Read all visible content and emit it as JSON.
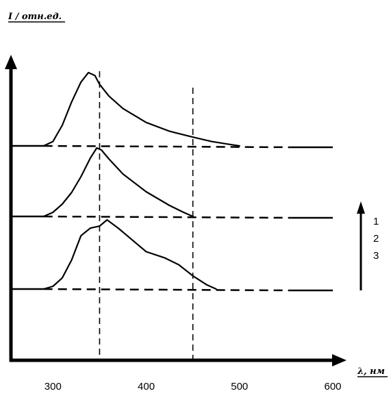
{
  "chart_data": {
    "type": "line",
    "ylabel": "I / отн.ед.",
    "xlabel": "λ, нм",
    "xlim": [
      255,
      600
    ],
    "x_ticks": [
      300,
      400,
      500,
      600
    ],
    "y_ticks": [],
    "grid": false,
    "reference_lines": [
      350,
      450
    ],
    "series_order_labels": [
      "1",
      "2",
      "3"
    ],
    "series": [
      {
        "name": "1",
        "x": [
          255,
          290,
          300,
          310,
          320,
          330,
          338,
          345,
          350,
          360,
          375,
          400,
          425,
          450,
          470,
          490,
          500,
          600
        ],
        "y": [
          0,
          0,
          0.06,
          0.28,
          0.6,
          0.87,
          1.0,
          0.96,
          0.84,
          0.68,
          0.51,
          0.32,
          0.2,
          0.12,
          0.06,
          0.02,
          0,
          0
        ]
      },
      {
        "name": "2",
        "x": [
          255,
          290,
          300,
          310,
          320,
          330,
          340,
          347,
          352,
          360,
          375,
          400,
          425,
          440,
          450,
          600
        ],
        "y": [
          0,
          0,
          0.06,
          0.18,
          0.35,
          0.58,
          0.85,
          1.0,
          0.97,
          0.84,
          0.62,
          0.36,
          0.16,
          0.06,
          0,
          0
        ]
      },
      {
        "name": "3",
        "x": [
          255,
          290,
          300,
          310,
          320,
          330,
          340,
          350,
          358,
          370,
          385,
          400,
          420,
          435,
          450,
          465,
          475,
          600
        ],
        "y": [
          0,
          0,
          0.04,
          0.16,
          0.42,
          0.77,
          0.88,
          0.91,
          1.0,
          0.88,
          0.71,
          0.54,
          0.45,
          0.35,
          0.19,
          0.06,
          0,
          0
        ]
      }
    ]
  }
}
